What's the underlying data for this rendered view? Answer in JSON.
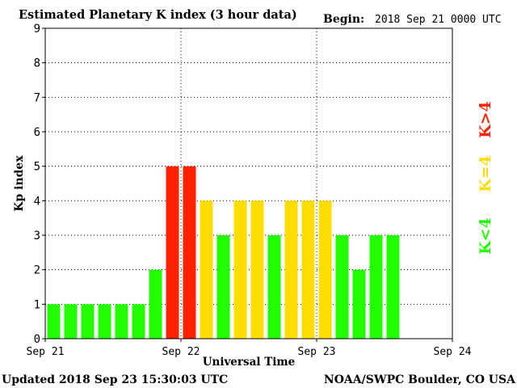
{
  "header": {
    "title": "Estimated Planetary K index (3 hour data)",
    "begin_label": "Begin:",
    "begin_value": "2018 Sep 21 0000 UTC"
  },
  "footer": {
    "updated": "Updated 2018 Sep 23 15:30:03 UTC",
    "source": "NOAA/SWPC Boulder, CO USA"
  },
  "legend": {
    "low": "K<4",
    "mid": "K=4",
    "high": "K>4"
  },
  "colors": {
    "low": "#22ff00",
    "mid": "#ffdd00",
    "high": "#ff2200",
    "grid": "#000000"
  },
  "chart_data": {
    "type": "bar",
    "title": "Estimated Planetary K index (3 hour data)",
    "xlabel": "Universal Time",
    "ylabel": "Kp index",
    "ylim": [
      0,
      9
    ],
    "yticks": [
      "0",
      "1",
      "2",
      "3",
      "4",
      "5",
      "6",
      "7",
      "8",
      "9"
    ],
    "xticks": [
      "Sep 21",
      "Sep 22",
      "Sep 23",
      "Sep 24"
    ],
    "intervals_per_day": 8,
    "total_intervals": 24,
    "values": [
      1,
      1,
      1,
      1,
      1,
      1,
      2,
      5,
      5,
      4,
      3,
      4,
      4,
      3,
      4,
      4,
      4,
      3,
      2,
      3,
      3
    ],
    "grid": true
  }
}
